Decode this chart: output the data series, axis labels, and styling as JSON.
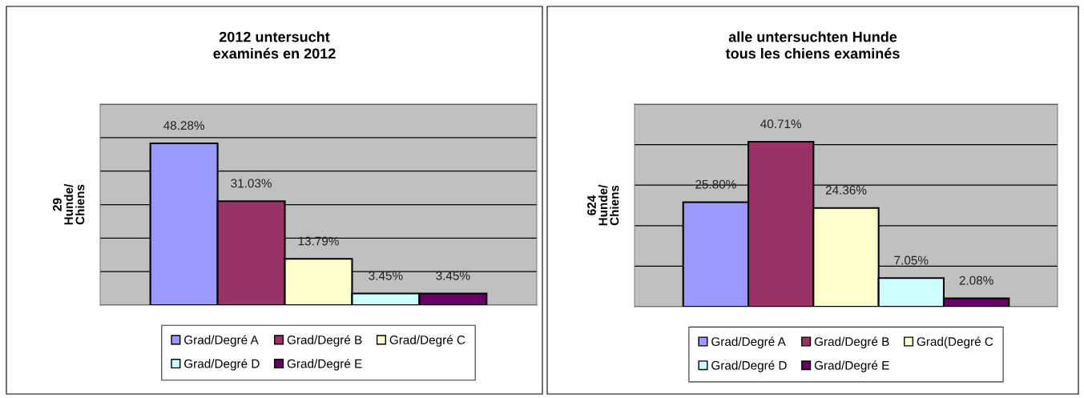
{
  "chart_data": [
    {
      "type": "bar",
      "title": "2012 untersucht\nexaminés en 2012",
      "ylabel": "29\nHunde/\nChiens",
      "categories": [
        null
      ],
      "ylim": [
        0,
        60
      ],
      "yticks": [
        {
          "value": 0,
          "label": null
        },
        {
          "value": 10,
          "label": null
        },
        {
          "value": 20,
          "label": null
        },
        {
          "value": 30,
          "label": null
        },
        {
          "value": 40,
          "label": null
        },
        {
          "value": 50,
          "label": null
        },
        {
          "value": 60,
          "label": null
        }
      ],
      "tick_labels": false,
      "grid": "y",
      "legend": "bottom",
      "series": [
        {
          "name": "Grad/Degré A",
          "color": "#9999ff",
          "values": [
            48.28
          ],
          "value_labels": [
            "48.28%"
          ]
        },
        {
          "name": "Grad/Degré B",
          "color": "#993366",
          "values": [
            31.03
          ],
          "value_labels": [
            "31.03%"
          ]
        },
        {
          "name": "Grad/Degré C",
          "color": "#ffffcc",
          "values": [
            13.79
          ],
          "value_labels": [
            "13.79%"
          ]
        },
        {
          "name": "Grad/Degré D",
          "color": "#ccffff",
          "values": [
            3.45
          ],
          "value_labels": [
            "3.45%"
          ]
        },
        {
          "name": "Grad/Degré E",
          "color": "#660066",
          "values": [
            3.45
          ],
          "value_labels": [
            "3.45%"
          ]
        }
      ]
    },
    {
      "type": "bar",
      "title": "alle untersuchten Hunde\ntous les chiens examinés",
      "ylabel": "624\nHunde/\nChiens",
      "categories": [
        null
      ],
      "ylim": [
        0,
        50
      ],
      "yticks": [
        {
          "value": 0,
          "label": null
        },
        {
          "value": 10,
          "label": null
        },
        {
          "value": 20,
          "label": null
        },
        {
          "value": 30,
          "label": null
        },
        {
          "value": 40,
          "label": null
        },
        {
          "value": 50,
          "label": null
        }
      ],
      "tick_labels": false,
      "grid": "y",
      "legend": "bottom",
      "series": [
        {
          "name": "Grad/Degré A",
          "color": "#9999ff",
          "values": [
            25.8
          ],
          "value_labels": [
            "25.80%"
          ]
        },
        {
          "name": "Grad/Degré B",
          "color": "#993366",
          "values": [
            40.71
          ],
          "value_labels": [
            "40.71%"
          ]
        },
        {
          "name": "Grad(Degré C",
          "color": "#ffffcc",
          "values": [
            24.36
          ],
          "value_labels": [
            "24.36%"
          ]
        },
        {
          "name": "Grad/Degré D",
          "color": "#ccffff",
          "values": [
            7.05
          ],
          "value_labels": [
            "7.05%"
          ]
        },
        {
          "name": "Grad/Degré E",
          "color": "#660066",
          "values": [
            2.08
          ],
          "value_labels": [
            "2.08%"
          ]
        }
      ]
    }
  ]
}
